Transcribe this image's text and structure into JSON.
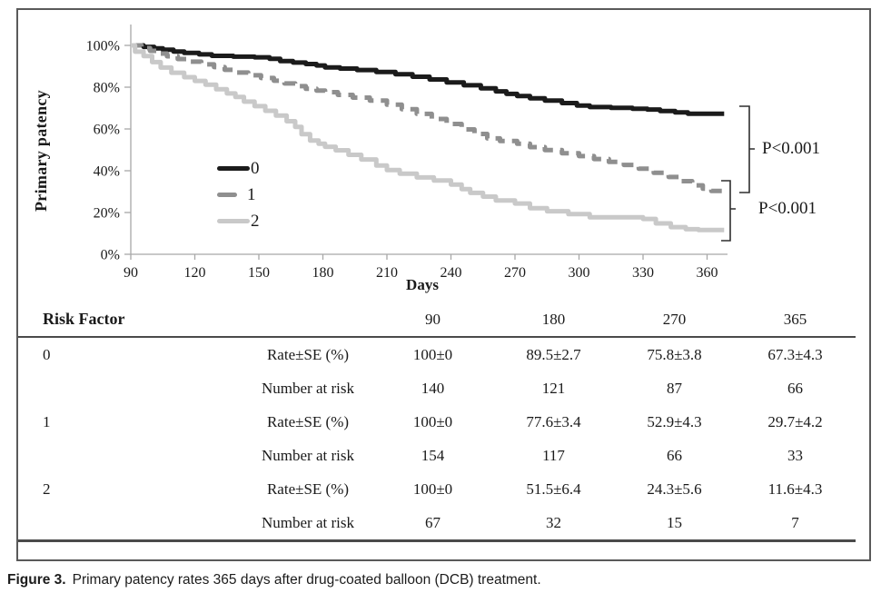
{
  "chart_data": {
    "type": "line",
    "subtype": "kaplan-meier-step-curves",
    "title": "",
    "xlabel": "Days",
    "ylabel": "Primary patency",
    "xlim": [
      90,
      370
    ],
    "ylim": [
      0,
      100
    ],
    "x_ticks": [
      90,
      120,
      150,
      180,
      210,
      240,
      270,
      300,
      330,
      360
    ],
    "y_ticks": [
      0,
      20,
      40,
      60,
      80,
      100
    ],
    "y_tick_labels": [
      "0%",
      "20%",
      "40%",
      "60%",
      "80%",
      "100%"
    ],
    "grid": false,
    "legend_position": "inside-left-middle",
    "series": [
      {
        "name": "0",
        "color": "#1b1b1b",
        "dash": "",
        "points": [
          [
            90,
            100
          ],
          [
            96,
            99.3
          ],
          [
            101,
            98.6
          ],
          [
            105,
            97.9
          ],
          [
            110,
            97.1
          ],
          [
            115,
            96.4
          ],
          [
            122,
            95.7
          ],
          [
            128,
            95.0
          ],
          [
            138,
            94.6
          ],
          [
            148,
            94.3
          ],
          [
            155,
            93.6
          ],
          [
            160,
            92.5
          ],
          [
            166,
            91.8
          ],
          [
            172,
            91.1
          ],
          [
            177,
            90.4
          ],
          [
            181,
            89.5
          ],
          [
            188,
            88.9
          ],
          [
            196,
            88.2
          ],
          [
            205,
            87.3
          ],
          [
            214,
            86.2
          ],
          [
            222,
            85.0
          ],
          [
            230,
            83.7
          ],
          [
            238,
            82.3
          ],
          [
            246,
            80.9
          ],
          [
            254,
            79.5
          ],
          [
            261,
            78.0
          ],
          [
            266,
            76.8
          ],
          [
            271,
            75.8
          ],
          [
            277,
            74.7
          ],
          [
            284,
            73.6
          ],
          [
            292,
            72.4
          ],
          [
            299,
            71.2
          ],
          [
            305,
            70.5
          ],
          [
            315,
            70.1
          ],
          [
            325,
            69.7
          ],
          [
            332,
            69.3
          ],
          [
            338,
            68.6
          ],
          [
            345,
            67.9
          ],
          [
            351,
            67.3
          ],
          [
            368,
            67.3
          ]
        ]
      },
      {
        "name": "1",
        "color": "#8f8f8f",
        "dash": "13 8",
        "points": [
          [
            90,
            100
          ],
          [
            95,
            98.7
          ],
          [
            99,
            97.4
          ],
          [
            103,
            96.1
          ],
          [
            107,
            94.8
          ],
          [
            112,
            93.5
          ],
          [
            117,
            92.2
          ],
          [
            123,
            90.9
          ],
          [
            129,
            89.6
          ],
          [
            134,
            88.3
          ],
          [
            139,
            87.0
          ],
          [
            145,
            85.7
          ],
          [
            151,
            84.4
          ],
          [
            157,
            83.1
          ],
          [
            162,
            81.8
          ],
          [
            167,
            80.5
          ],
          [
            172,
            79.2
          ],
          [
            177,
            78.4
          ],
          [
            181,
            77.6
          ],
          [
            187,
            76.3
          ],
          [
            194,
            75.0
          ],
          [
            202,
            73.6
          ],
          [
            210,
            71.6
          ],
          [
            217,
            69.5
          ],
          [
            224,
            67.2
          ],
          [
            231,
            64.8
          ],
          [
            238,
            62.4
          ],
          [
            245,
            59.8
          ],
          [
            251,
            57.6
          ],
          [
            257,
            55.5
          ],
          [
            263,
            54.2
          ],
          [
            271,
            52.9
          ],
          [
            277,
            51.3
          ],
          [
            284,
            49.9
          ],
          [
            292,
            48.4
          ],
          [
            300,
            47.0
          ],
          [
            307,
            45.6
          ],
          [
            314,
            44.2
          ],
          [
            321,
            42.8
          ],
          [
            328,
            41.0
          ],
          [
            335,
            39.0
          ],
          [
            342,
            37.0
          ],
          [
            348,
            35.0
          ],
          [
            353,
            33.0
          ],
          [
            358,
            31.4
          ],
          [
            362,
            30.3
          ],
          [
            368,
            29.7
          ]
        ]
      },
      {
        "name": "2",
        "color": "#c9c9c9",
        "dash": "",
        "points": [
          [
            90,
            100
          ],
          [
            92,
            97.0
          ],
          [
            96,
            94.9
          ],
          [
            100,
            92.0
          ],
          [
            104,
            89.4
          ],
          [
            109,
            86.9
          ],
          [
            115,
            84.8
          ],
          [
            120,
            83.0
          ],
          [
            125,
            81.2
          ],
          [
            130,
            79.0
          ],
          [
            135,
            77.0
          ],
          [
            139,
            75.3
          ],
          [
            143,
            73.1
          ],
          [
            148,
            70.9
          ],
          [
            153,
            68.7
          ],
          [
            158,
            66.4
          ],
          [
            163,
            63.7
          ],
          [
            167,
            61.0
          ],
          [
            170,
            57.5
          ],
          [
            174,
            54.5
          ],
          [
            178,
            52.9
          ],
          [
            181,
            51.5
          ],
          [
            186,
            49.8
          ],
          [
            192,
            47.6
          ],
          [
            198,
            45.4
          ],
          [
            205,
            42.5
          ],
          [
            210,
            40.3
          ],
          [
            216,
            38.6
          ],
          [
            224,
            36.8
          ],
          [
            232,
            35.3
          ],
          [
            240,
            33.4
          ],
          [
            245,
            31.2
          ],
          [
            249,
            29.4
          ],
          [
            255,
            27.6
          ],
          [
            261,
            25.8
          ],
          [
            270,
            24.3
          ],
          [
            277,
            22.1
          ],
          [
            285,
            20.6
          ],
          [
            295,
            19.2
          ],
          [
            305,
            17.7
          ],
          [
            330,
            16.9
          ],
          [
            336,
            14.8
          ],
          [
            343,
            13.0
          ],
          [
            350,
            12.0
          ],
          [
            356,
            11.6
          ],
          [
            368,
            11.6
          ]
        ]
      }
    ],
    "annotations": [
      {
        "label": "P<0.001",
        "between": [
          "0",
          "1"
        ]
      },
      {
        "label": "P<0.001",
        "between": [
          "1",
          "2"
        ]
      }
    ]
  },
  "table": {
    "risk_factor_label": "Risk Factor",
    "timepoints": [
      "90",
      "180",
      "270",
      "365"
    ],
    "groups": [
      {
        "label": "0",
        "rate_label": "Rate±SE (%)",
        "rates": [
          "100±0",
          "89.5±2.7",
          "75.8±3.8",
          "67.3±4.3"
        ],
        "number_label": "Number at risk",
        "numbers": [
          "140",
          "121",
          "87",
          "66"
        ]
      },
      {
        "label": "1",
        "rate_label": "Rate±SE (%)",
        "rates": [
          "100±0",
          "77.6±3.4",
          "52.9±4.3",
          "29.7±4.2"
        ],
        "number_label": "Number at risk",
        "numbers": [
          "154",
          "117",
          "66",
          "33"
        ]
      },
      {
        "label": "2",
        "rate_label": "Rate±SE (%)",
        "rates": [
          "100±0",
          "51.5±6.4",
          "24.3±5.6",
          "11.6±4.3"
        ],
        "number_label": "Number at risk",
        "numbers": [
          "67",
          "32",
          "15",
          "7"
        ]
      }
    ]
  },
  "caption": {
    "label": "Figure 3.",
    "text": "Primary patency rates 365 days after drug-coated balloon (DCB) treatment."
  },
  "colors": {
    "axis": "#a8a8a8",
    "text": "#1a1a1a",
    "rule": "#4a4a4a",
    "bracket": "#2f2f2f"
  }
}
